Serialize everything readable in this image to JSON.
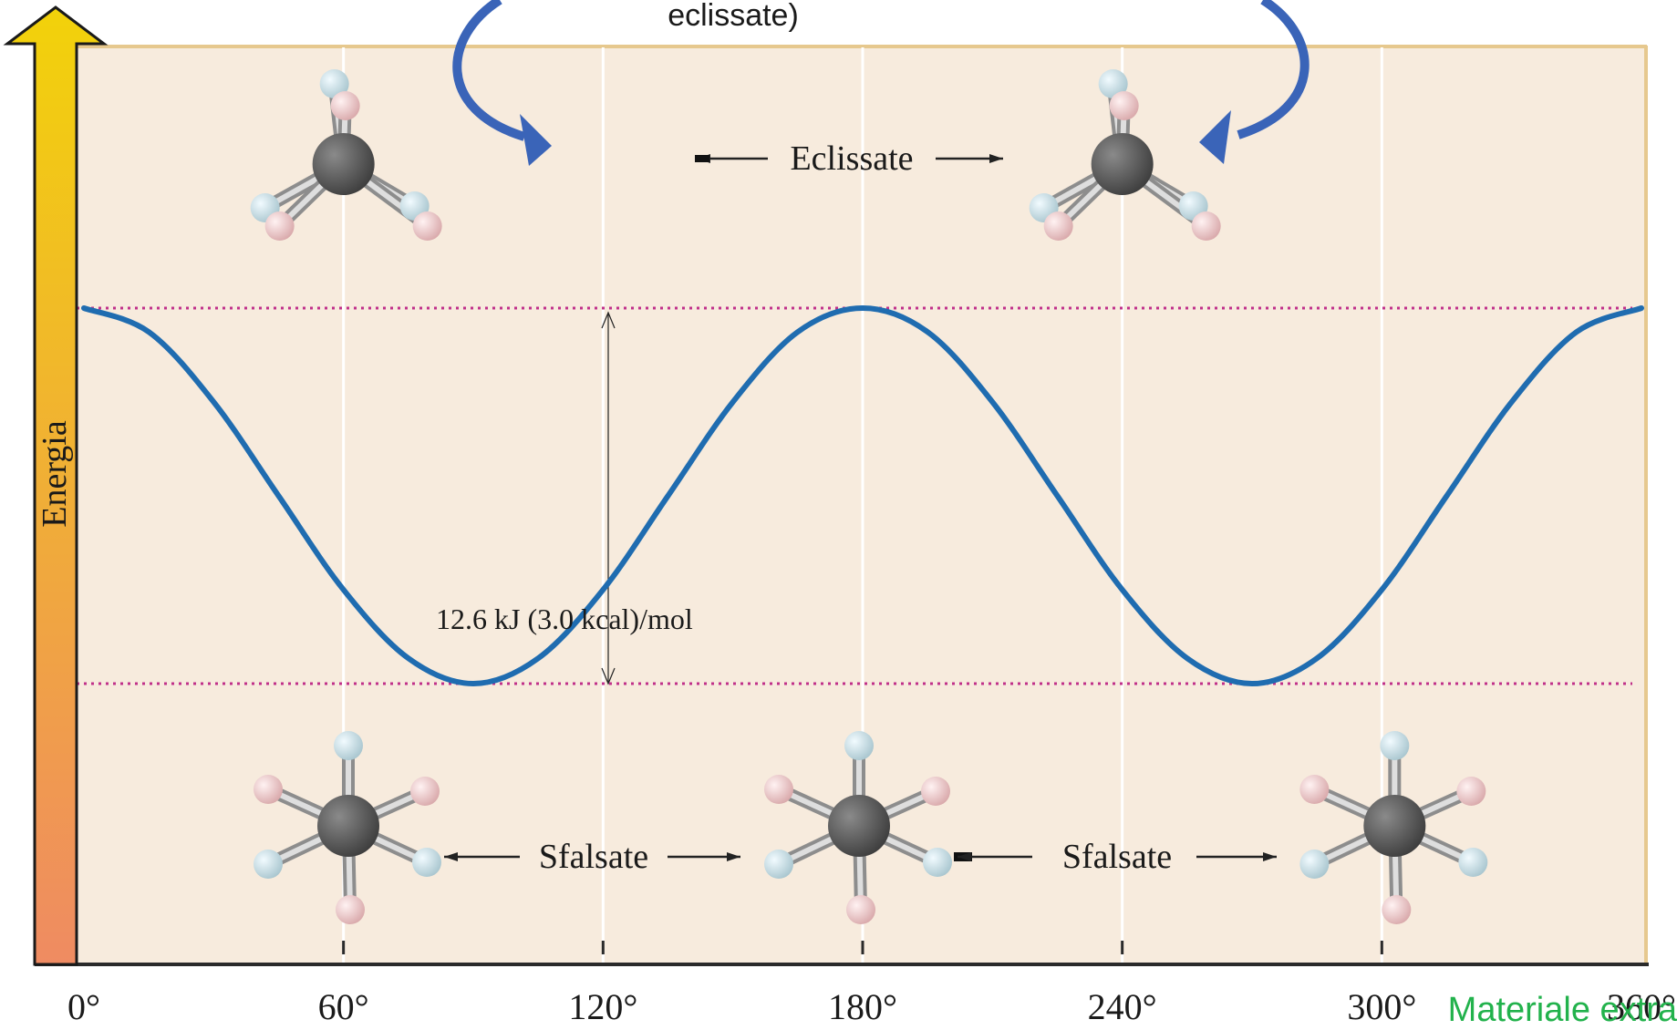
{
  "chart_data": {
    "type": "line",
    "title_fragment": "eclissate)",
    "ylabel": "Energia",
    "x_ticks": [
      "0°",
      "60°",
      "120°",
      "180°",
      "240°",
      "300°",
      "360°"
    ],
    "xlim": [
      0,
      360
    ],
    "series": [
      {
        "x": [
          0,
          15,
          30,
          45,
          60,
          75,
          90,
          105,
          120,
          135,
          150,
          165,
          180,
          195,
          210,
          225,
          240,
          255,
          270,
          285,
          300,
          315,
          330,
          345,
          360
        ],
        "values": [
          12.6,
          11.8,
          9.45,
          6.3,
          3.15,
          0.85,
          0,
          0.85,
          3.15,
          6.3,
          9.45,
          11.8,
          12.6,
          11.8,
          9.45,
          6.3,
          3.15,
          0.85,
          0,
          0.85,
          3.15,
          6.3,
          9.45,
          11.8,
          12.6
        ]
      }
    ],
    "ylim": [
      0,
      12.6
    ],
    "barrier_label": "12.6 kJ (3.0 kcal)/mol",
    "eclipsed_label": "Eclissate",
    "staggered_labels": [
      "Sfalsate",
      "Sfalsate"
    ],
    "footer_note": "Materiale extra",
    "colors": {
      "curve": "#1f6cb0",
      "dotted_lines": "#c0308a",
      "plot_bg": "#f7ebdd",
      "frame": "#e6c88e",
      "bottom_axis": "#2a2a2a",
      "eclipsed_arrows": "#3a64b8",
      "note": "#22b24c",
      "energy_arrow_top": "#f2d20a",
      "energy_arrow_bottom": "#ef8b62"
    }
  }
}
